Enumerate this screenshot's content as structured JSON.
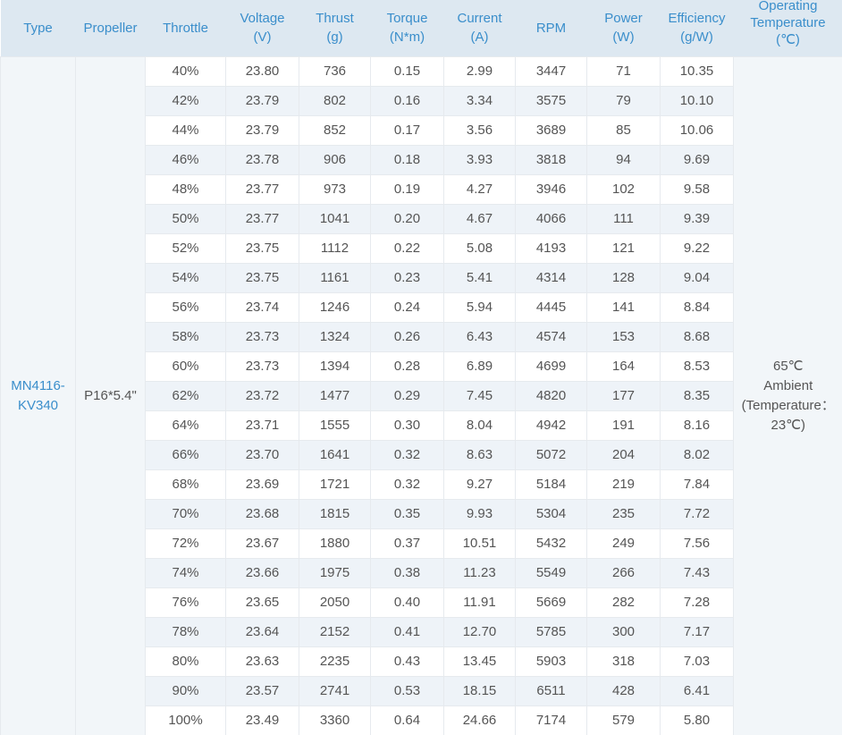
{
  "headers": {
    "type": "Type",
    "propeller": "Propeller",
    "throttle": "Throttle",
    "voltage": [
      "Voltage",
      "(V)"
    ],
    "thrust": [
      "Thrust",
      "(g)"
    ],
    "torque": [
      "Torque",
      "(N*m)"
    ],
    "current": [
      "Current",
      "(A)"
    ],
    "rpm": "RPM",
    "power": [
      "Power",
      "(W)"
    ],
    "efficiency": [
      "Efficiency",
      "(g/W)"
    ],
    "temperature": [
      "Operating",
      "Temperature",
      "(℃)"
    ]
  },
  "type": [
    "MN4116-",
    "KV340"
  ],
  "propeller": "P16*5.4\"",
  "temperature": [
    "65℃",
    "Ambient",
    "(Temperature：",
    "23℃)"
  ],
  "rows": [
    [
      "40%",
      "23.80",
      "736",
      "0.15",
      "2.99",
      "3447",
      "71",
      "10.35"
    ],
    [
      "42%",
      "23.79",
      "802",
      "0.16",
      "3.34",
      "3575",
      "79",
      "10.10"
    ],
    [
      "44%",
      "23.79",
      "852",
      "0.17",
      "3.56",
      "3689",
      "85",
      "10.06"
    ],
    [
      "46%",
      "23.78",
      "906",
      "0.18",
      "3.93",
      "3818",
      "94",
      "9.69"
    ],
    [
      "48%",
      "23.77",
      "973",
      "0.19",
      "4.27",
      "3946",
      "102",
      "9.58"
    ],
    [
      "50%",
      "23.77",
      "1041",
      "0.20",
      "4.67",
      "4066",
      "111",
      "9.39"
    ],
    [
      "52%",
      "23.75",
      "1112",
      "0.22",
      "5.08",
      "4193",
      "121",
      "9.22"
    ],
    [
      "54%",
      "23.75",
      "1161",
      "0.23",
      "5.41",
      "4314",
      "128",
      "9.04"
    ],
    [
      "56%",
      "23.74",
      "1246",
      "0.24",
      "5.94",
      "4445",
      "141",
      "8.84"
    ],
    [
      "58%",
      "23.73",
      "1324",
      "0.26",
      "6.43",
      "4574",
      "153",
      "8.68"
    ],
    [
      "60%",
      "23.73",
      "1394",
      "0.28",
      "6.89",
      "4699",
      "164",
      "8.53"
    ],
    [
      "62%",
      "23.72",
      "1477",
      "0.29",
      "7.45",
      "4820",
      "177",
      "8.35"
    ],
    [
      "64%",
      "23.71",
      "1555",
      "0.30",
      "8.04",
      "4942",
      "191",
      "8.16"
    ],
    [
      "66%",
      "23.70",
      "1641",
      "0.32",
      "8.63",
      "5072",
      "204",
      "8.02"
    ],
    [
      "68%",
      "23.69",
      "1721",
      "0.32",
      "9.27",
      "5184",
      "219",
      "7.84"
    ],
    [
      "70%",
      "23.68",
      "1815",
      "0.35",
      "9.93",
      "5304",
      "235",
      "7.72"
    ],
    [
      "72%",
      "23.67",
      "1880",
      "0.37",
      "10.51",
      "5432",
      "249",
      "7.56"
    ],
    [
      "74%",
      "23.66",
      "1975",
      "0.38",
      "11.23",
      "5549",
      "266",
      "7.43"
    ],
    [
      "76%",
      "23.65",
      "2050",
      "0.40",
      "11.91",
      "5669",
      "282",
      "7.28"
    ],
    [
      "78%",
      "23.64",
      "2152",
      "0.41",
      "12.70",
      "5785",
      "300",
      "7.17"
    ],
    [
      "80%",
      "23.63",
      "2235",
      "0.43",
      "13.45",
      "5903",
      "318",
      "7.03"
    ],
    [
      "90%",
      "23.57",
      "2741",
      "0.53",
      "18.15",
      "6511",
      "428",
      "6.41"
    ],
    [
      "100%",
      "23.49",
      "3360",
      "0.64",
      "24.66",
      "7174",
      "579",
      "5.80"
    ]
  ]
}
